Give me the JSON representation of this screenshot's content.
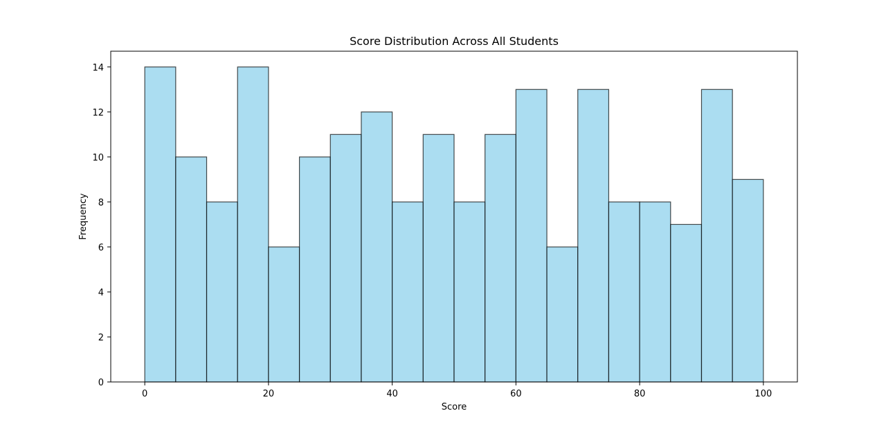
{
  "chart_data": {
    "type": "bar",
    "title": "Score Distribution Across All Students",
    "xlabel": "Score",
    "ylabel": "Frequency",
    "bin_edges": [
      0,
      5,
      10,
      15,
      20,
      25,
      30,
      35,
      40,
      45,
      50,
      55,
      60,
      65,
      70,
      75,
      80,
      85,
      90,
      95,
      100
    ],
    "values": [
      14,
      10,
      8,
      14,
      6,
      10,
      11,
      12,
      8,
      11,
      8,
      11,
      13,
      6,
      13,
      8,
      8,
      7,
      13,
      9
    ],
    "xlim": [
      -5.5,
      105.5
    ],
    "ylim": [
      0,
      14.7
    ],
    "xticks": [
      "0",
      "20",
      "40",
      "60",
      "80",
      "100"
    ],
    "yticks": [
      "0",
      "2",
      "4",
      "6",
      "8",
      "10",
      "12",
      "14"
    ],
    "grid": false,
    "legend": "none",
    "colors": {
      "bar_fill": "#87ceeb",
      "bar_edge": "#000000",
      "axes": "#000000"
    }
  }
}
